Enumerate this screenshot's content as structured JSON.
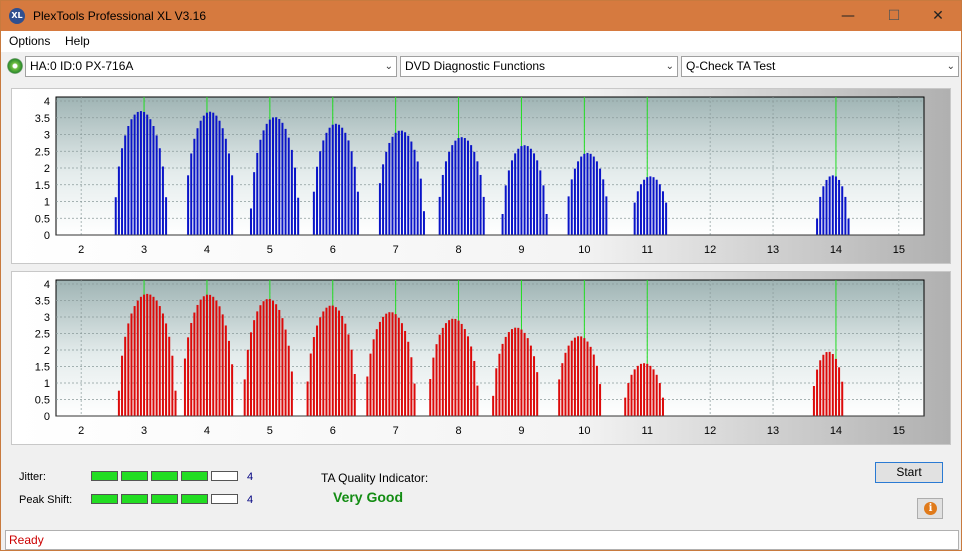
{
  "window": {
    "title": "PlexTools Professional XL V3.16",
    "icon_text": "XL"
  },
  "titlebar_buttons": {
    "minimize": "—",
    "maximize": "☐",
    "close": "✕"
  },
  "menu": [
    {
      "label": "Options"
    },
    {
      "label": "Help"
    }
  ],
  "toolbar": {
    "drive": "HA:0 ID:0  PX-716A",
    "function": "DVD Diagnostic Functions",
    "test": "Q-Check TA Test"
  },
  "chart_data": [
    {
      "type": "bar",
      "color": "#0a14c8",
      "ylim": [
        0,
        4
      ],
      "yticks": [
        "0",
        "0.5",
        "1",
        "1.5",
        "2",
        "2.5",
        "3",
        "3.5",
        "4"
      ],
      "xlim": [
        1.6,
        15.4
      ],
      "xticks": [
        "2",
        "3",
        "4",
        "5",
        "6",
        "7",
        "8",
        "9",
        "10",
        "11",
        "12",
        "13",
        "14",
        "15"
      ],
      "peaks": [
        {
          "x": 2.95,
          "h": 3.7,
          "w": 0.42
        },
        {
          "x": 4.05,
          "h": 3.68,
          "w": 0.4
        },
        {
          "x": 5.08,
          "h": 3.52,
          "w": 0.39
        },
        {
          "x": 6.05,
          "h": 3.32,
          "w": 0.38
        },
        {
          "x": 7.08,
          "h": 3.12,
          "w": 0.38
        },
        {
          "x": 8.05,
          "h": 2.92,
          "w": 0.38
        },
        {
          "x": 9.05,
          "h": 2.68,
          "w": 0.36
        },
        {
          "x": 10.05,
          "h": 2.45,
          "w": 0.34
        },
        {
          "x": 11.05,
          "h": 1.75,
          "w": 0.3
        },
        {
          "x": 13.95,
          "h": 1.78,
          "w": 0.26
        }
      ]
    },
    {
      "type": "bar",
      "color": "#dc0a0a",
      "ylim": [
        0,
        4
      ],
      "yticks": [
        "0",
        "0.5",
        "1",
        "1.5",
        "2",
        "2.5",
        "3",
        "3.5",
        "4"
      ],
      "xlim": [
        1.6,
        15.4
      ],
      "xticks": [
        "2",
        "3",
        "4",
        "5",
        "6",
        "7",
        "8",
        "9",
        "10",
        "11",
        "12",
        "13",
        "14",
        "15"
      ],
      "peaks": [
        {
          "x": 3.05,
          "h": 3.7,
          "w": 0.46
        },
        {
          "x": 4.02,
          "h": 3.68,
          "w": 0.42
        },
        {
          "x": 4.98,
          "h": 3.55,
          "w": 0.4
        },
        {
          "x": 5.98,
          "h": 3.35,
          "w": 0.4
        },
        {
          "x": 6.92,
          "h": 3.15,
          "w": 0.4
        },
        {
          "x": 7.92,
          "h": 2.95,
          "w": 0.4
        },
        {
          "x": 8.92,
          "h": 2.68,
          "w": 0.38
        },
        {
          "x": 9.92,
          "h": 2.42,
          "w": 0.36
        },
        {
          "x": 10.95,
          "h": 1.6,
          "w": 0.32
        },
        {
          "x": 13.88,
          "h": 1.95,
          "w": 0.26
        }
      ]
    }
  ],
  "green_marks": [
    3.0,
    4.0,
    5.0,
    6.0,
    7.0,
    8.0,
    9.0,
    10.0,
    11.0,
    14.0
  ],
  "metrics": {
    "jitter_label": "Jitter:",
    "jitter_value": 4,
    "jitter_text": "4",
    "peak_label": "Peak Shift:",
    "peak_value": 4,
    "peak_text": "4",
    "segments": 5,
    "quality_label": "TA Quality Indicator:",
    "quality_value": "Very Good"
  },
  "buttons": {
    "start": "Start",
    "info": "i"
  },
  "status": "Ready"
}
